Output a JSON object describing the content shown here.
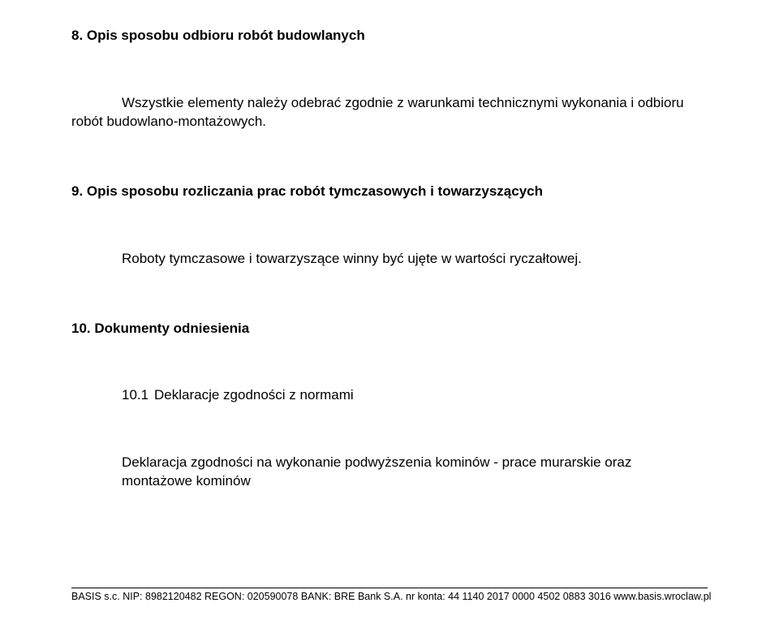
{
  "section1": {
    "heading": "8. Opis sposobu odbioru robót budowlanych",
    "body": "Wszystkie elementy należy odebrać zgodnie z warunkami technicznymi wykonania i odbioru robót budowlano-montażowych."
  },
  "section2": {
    "heading": "9. Opis sposobu rozliczania prac robót tymczasowych i towarzyszących",
    "body": "Roboty tymczasowe i towarzyszące winny być ujęte w wartości ryczałtowej."
  },
  "section3": {
    "heading": "10. Dokumenty odniesienia",
    "sub_num": "10.1",
    "sub_label": "Deklaracje zgodności z normami",
    "body": "Deklaracja zgodności na wykonanie podwyższenia kominów - prace murarskie oraz montażowe kominów"
  },
  "footer": "BASIS s.c.   NIP: 8982120482   REGON: 020590078   BANK: BRE Bank S.A.   nr konta: 44 1140 2017 0000 4502 0883 3016   www.basis.wroclaw.pl"
}
